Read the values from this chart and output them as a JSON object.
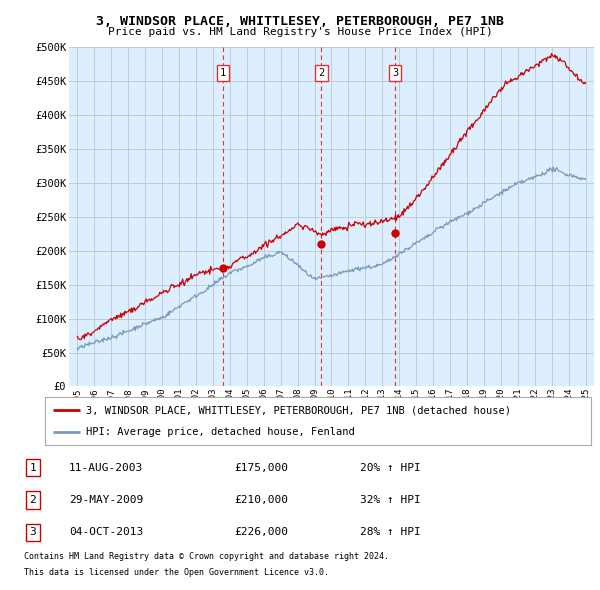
{
  "title": "3, WINDSOR PLACE, WHITTLESEY, PETERBOROUGH, PE7 1NB",
  "subtitle": "Price paid vs. HM Land Registry's House Price Index (HPI)",
  "ylabel_ticks": [
    "£0",
    "£50K",
    "£100K",
    "£150K",
    "£200K",
    "£250K",
    "£300K",
    "£350K",
    "£400K",
    "£450K",
    "£500K"
  ],
  "ytick_values": [
    0,
    50000,
    100000,
    150000,
    200000,
    250000,
    300000,
    350000,
    400000,
    450000,
    500000
  ],
  "ylim": [
    0,
    500000
  ],
  "xlim_start": 1994.5,
  "xlim_end": 2025.5,
  "xtick_years": [
    1995,
    1996,
    1997,
    1998,
    1999,
    2000,
    2001,
    2002,
    2003,
    2004,
    2005,
    2006,
    2007,
    2008,
    2009,
    2010,
    2011,
    2012,
    2013,
    2014,
    2015,
    2016,
    2017,
    2018,
    2019,
    2020,
    2021,
    2022,
    2023,
    2024,
    2025
  ],
  "sale_dates": [
    2003.6,
    2009.4,
    2013.75
  ],
  "sale_prices": [
    175000,
    210000,
    226000
  ],
  "sale_labels": [
    "1",
    "2",
    "3"
  ],
  "vline_color": "#dd3333",
  "red_line_color": "#cc0000",
  "blue_line_color": "#7799bb",
  "plot_bg_color": "#ddeeff",
  "legend_entry1": "3, WINDSOR PLACE, WHITTLESEY, PETERBOROUGH, PE7 1NB (detached house)",
  "legend_entry2": "HPI: Average price, detached house, Fenland",
  "table_rows": [
    {
      "num": "1",
      "date": "11-AUG-2003",
      "price": "£175,000",
      "hpi": "20% ↑ HPI"
    },
    {
      "num": "2",
      "date": "29-MAY-2009",
      "price": "£210,000",
      "hpi": "32% ↑ HPI"
    },
    {
      "num": "3",
      "date": "04-OCT-2013",
      "price": "£226,000",
      "hpi": "28% ↑ HPI"
    }
  ],
  "footnote1": "Contains HM Land Registry data © Crown copyright and database right 2024.",
  "footnote2": "This data is licensed under the Open Government Licence v3.0.",
  "background_color": "#ffffff",
  "grid_color": "#bbccdd"
}
